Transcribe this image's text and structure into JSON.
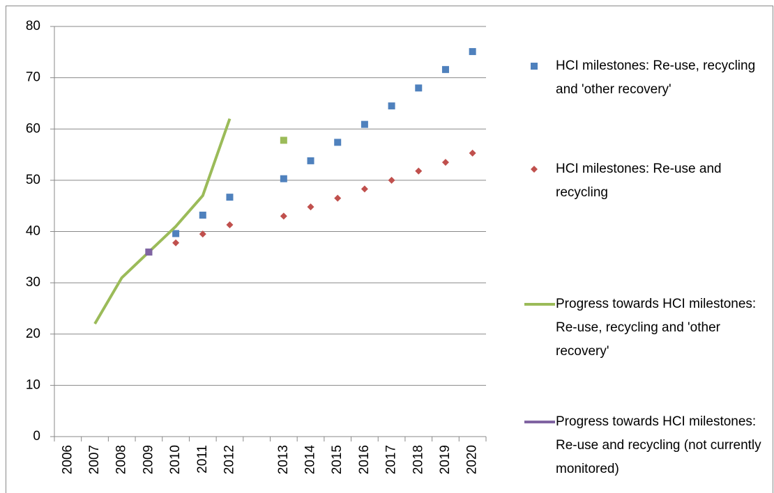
{
  "chart_data": {
    "type": "line",
    "categories": [
      "2006",
      "2007",
      "2008",
      "2009",
      "2010",
      "2011",
      "2012",
      null,
      "2013",
      "2014",
      "2015",
      "2016",
      "2017",
      "2018",
      "2019",
      "2020"
    ],
    "series": [
      {
        "name": "HCI milestones: Re-use, recycling and 'other recovery'",
        "color": "#4f81bd",
        "marker": "square",
        "line": false,
        "values": [
          null,
          null,
          null,
          36,
          39.6,
          43.2,
          46.7,
          null,
          50.3,
          53.8,
          57.4,
          60.9,
          64.5,
          68,
          71.6,
          75.1
        ]
      },
      {
        "name": "HCI milestones: Re-use and recycling",
        "color": "#c0504d",
        "marker": "diamond",
        "line": false,
        "values": [
          null,
          null,
          null,
          36,
          37.8,
          39.5,
          41.3,
          null,
          43,
          44.8,
          46.5,
          48.3,
          50,
          51.8,
          53.5,
          55.3
        ]
      },
      {
        "name": "Progress towards HCI milestones: Re-use, recycling and 'other recovery'",
        "color": "#9bbb59",
        "marker": "square",
        "line": true,
        "values": [
          null,
          22,
          31,
          36,
          41,
          47,
          62,
          null,
          57.8,
          null,
          null,
          null,
          null,
          null,
          null,
          null
        ]
      },
      {
        "name": "Progress towards HCI milestones: Re-use and recycling (not currently monitored)",
        "color": "#8064a2",
        "marker": "square",
        "line": true,
        "values": [
          null,
          null,
          null,
          36,
          null,
          null,
          null,
          null,
          null,
          null,
          null,
          null,
          null,
          null,
          null,
          null
        ]
      }
    ],
    "ylim": [
      0,
      80
    ],
    "yticks": [
      0,
      10,
      20,
      30,
      40,
      50,
      60,
      70,
      80
    ],
    "grid": true
  }
}
